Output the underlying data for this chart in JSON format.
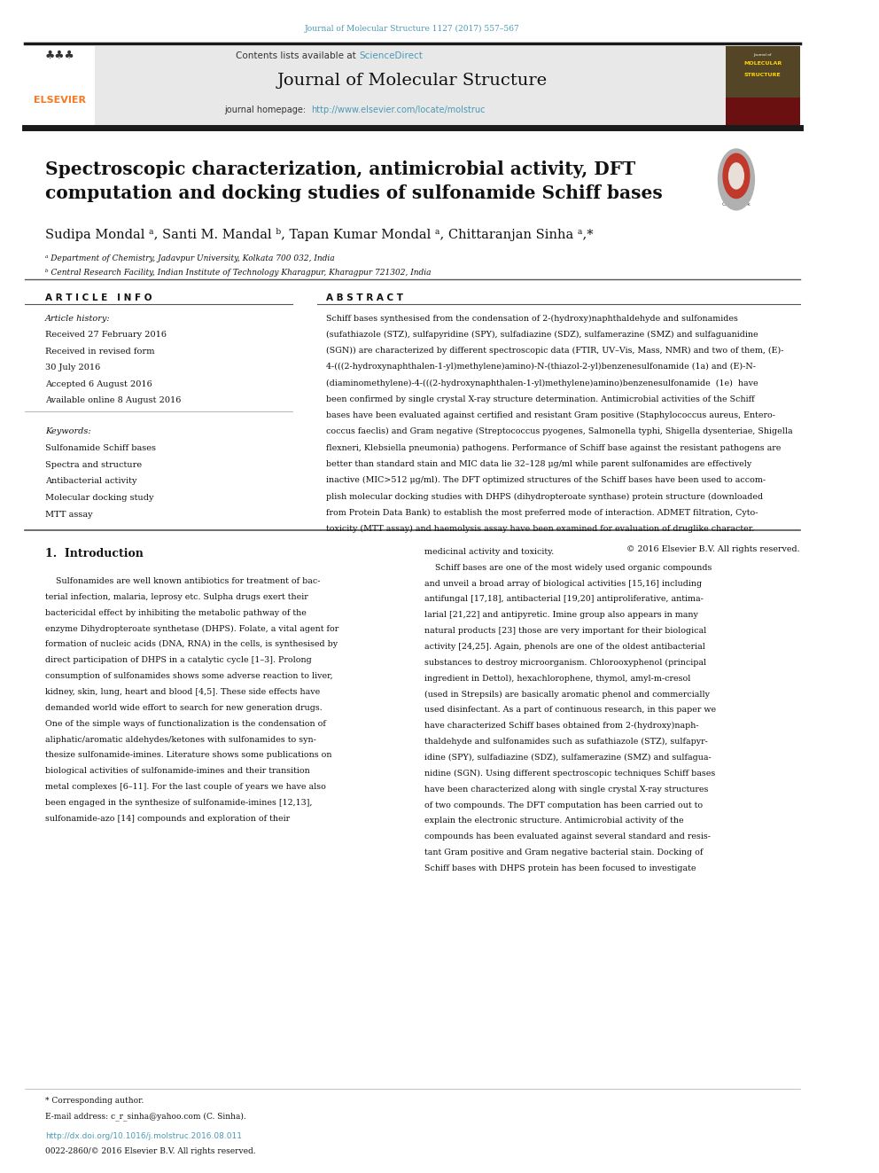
{
  "page_width": 9.92,
  "page_height": 13.23,
  "background_color": "#ffffff",
  "journal_ref": "Journal of Molecular Structure 1127 (2017) 557–567",
  "journal_ref_color": "#4a9ab5",
  "header_bg": "#e8e8e8",
  "contents_text": "Contents lists available at ",
  "sciencedirect_text": "ScienceDirect",
  "sciencedirect_color": "#4a9ab5",
  "journal_name": "Journal of Molecular Structure",
  "homepage_text": "journal homepage: ",
  "homepage_url": "http://www.elsevier.com/locate/molstruc",
  "homepage_url_color": "#4a9ab5",
  "elsevier_color": "#f47920",
  "title": "Spectroscopic characterization, antimicrobial activity, DFT\ncomputation and docking studies of sulfonamide Schiff bases",
  "authors": "Sudipa Mondal ᵃ, Santi M. Mandal ᵇ, Tapan Kumar Mondal ᵃ, Chittaranjan Sinha ᵃ,*",
  "affil_a": "ᵃ Department of Chemistry, Jadavpur University, Kolkata 700 032, India",
  "affil_b": "ᵇ Central Research Facility, Indian Institute of Technology Kharagpur, Kharagpur 721302, India",
  "separator_color": "#000000",
  "article_info_header": "A R T I C L E   I N F O",
  "abstract_header": "A B S T R A C T",
  "article_history_label": "Article history:",
  "received1": "Received 27 February 2016",
  "received2": "Received in revised form",
  "received2b": "30 July 2016",
  "accepted": "Accepted 6 August 2016",
  "available": "Available online 8 August 2016",
  "keywords_label": "Keywords:",
  "keyword1": "Sulfonamide Schiff bases",
  "keyword2": "Spectra and structure",
  "keyword3": "Antibacterial activity",
  "keyword4": "Molecular docking study",
  "keyword5": "MTT assay",
  "copyright": "© 2016 Elsevier B.V. All rights reserved.",
  "section1_title": "1.  Introduction",
  "corr_note": "* Corresponding author.",
  "email_note": "E-mail address: c_r_sinha@yahoo.com (C. Sinha).",
  "doi_text": "http://dx.doi.org/10.1016/j.molstruc.2016.08.011",
  "issn_text": "0022-2860/© 2016 Elsevier B.V. All rights reserved.",
  "thick_bar_color": "#1a1a1a",
  "thin_line_color": "#555555",
  "abstract_lines": [
    "Schiff bases synthesised from the condensation of 2-(hydroxy)naphthaldehyde and sulfonamides",
    "(sufathiazole (STZ), sulfapyridine (SPY), sulfadiazine (SDZ), sulfamerazine (SMZ) and sulfaguanidine",
    "(SGN)) are characterized by different spectroscopic data (FTIR, UV–Vis, Mass, NMR) and two of them, (E)-",
    "4-(((2-hydroxynaphthalen-1-yl)methylene)amino)-N-(thiazol-2-yl)benzenesulfonamide (1a) and (E)-N-",
    "(diaminomethylene)-4-(((2-hydroxynaphthalen-1-yl)methylene)amino)benzenesulfonamide  (1e)  have",
    "been confirmed by single crystal X-ray structure determination. Antimicrobial activities of the Schiff",
    "bases have been evaluated against certified and resistant Gram positive (Staphylococcus aureus, Entero-",
    "coccus faeclis) and Gram negative (Streptococcus pyogenes, Salmonella typhi, Shigella dysenteriae, Shigella",
    "flexneri, Klebsiella pneumonia) pathogens. Performance of Schiff base against the resistant pathogens are",
    "better than standard stain and MIC data lie 32–128 μg/ml while parent sulfonamides are effectively",
    "inactive (MIC>512 μg/ml). The DFT optimized structures of the Schiff bases have been used to accom-",
    "plish molecular docking studies with DHPS (dihydropteroate synthase) protein structure (downloaded",
    "from Protein Data Bank) to establish the most preferred mode of interaction. ADMET filtration, Cyto-",
    "toxicity (MTT assay) and haemolysis assay have been examined for evaluation of druglike character."
  ],
  "intro_left_lines": [
    "    Sulfonamides are well known antibiotics for treatment of bac-",
    "terial infection, malaria, leprosy etc. Sulpha drugs exert their",
    "bactericidal effect by inhibiting the metabolic pathway of the",
    "enzyme Dihydropteroate synthetase (DHPS). Folate, a vital agent for",
    "formation of nucleic acids (DNA, RNA) in the cells, is synthesised by",
    "direct participation of DHPS in a catalytic cycle [1–3]. Prolong",
    "consumption of sulfonamides shows some adverse reaction to liver,",
    "kidney, skin, lung, heart and blood [4,5]. These side effects have",
    "demanded world wide effort to search for new generation drugs.",
    "One of the simple ways of functionalization is the condensation of",
    "aliphatic/aromatic aldehydes/ketones with sulfonamides to syn-",
    "thesize sulfonamide-imines. Literature shows some publications on",
    "biological activities of sulfonamide-imines and their transition",
    "metal complexes [6–11]. For the last couple of years we have also",
    "been engaged in the synthesize of sulfonamide-imines [12,13],",
    "sulfonamide-azo [14] compounds and exploration of their"
  ],
  "intro_right_lines": [
    "medicinal activity and toxicity.",
    "    Schiff bases are one of the most widely used organic compounds",
    "and unveil a broad array of biological activities [15,16] including",
    "antifungal [17,18], antibacterial [19,20] antiproliferative, antima-",
    "larial [21,22] and antipyretic. Imine group also appears in many",
    "natural products [23] those are very important for their biological",
    "activity [24,25]. Again, phenols are one of the oldest antibacterial",
    "substances to destroy microorganism. Chlorooxyphenol (principal",
    "ingredient in Dettol), hexachlorophene, thymol, amyl-m-cresol",
    "(used in Strepsils) are basically aromatic phenol and commercially",
    "used disinfectant. As a part of continuous research, in this paper we",
    "have characterized Schiff bases obtained from 2-(hydroxy)naph-",
    "thaldehyde and sulfonamides such as sufathiazole (STZ), sulfapyr-",
    "idine (SPY), sulfadiazine (SDZ), sulfamerazine (SMZ) and sulfagua-",
    "nidine (SGN). Using different spectroscopic techniques Schiff bases",
    "have been characterized along with single crystal X-ray structures",
    "of two compounds. The DFT computation has been carried out to",
    "explain the electronic structure. Antimicrobial activity of the",
    "compounds has been evaluated against several standard and resis-",
    "tant Gram positive and Gram negative bacterial stain. Docking of",
    "Schiff bases with DHPS protein has been focused to investigate"
  ]
}
